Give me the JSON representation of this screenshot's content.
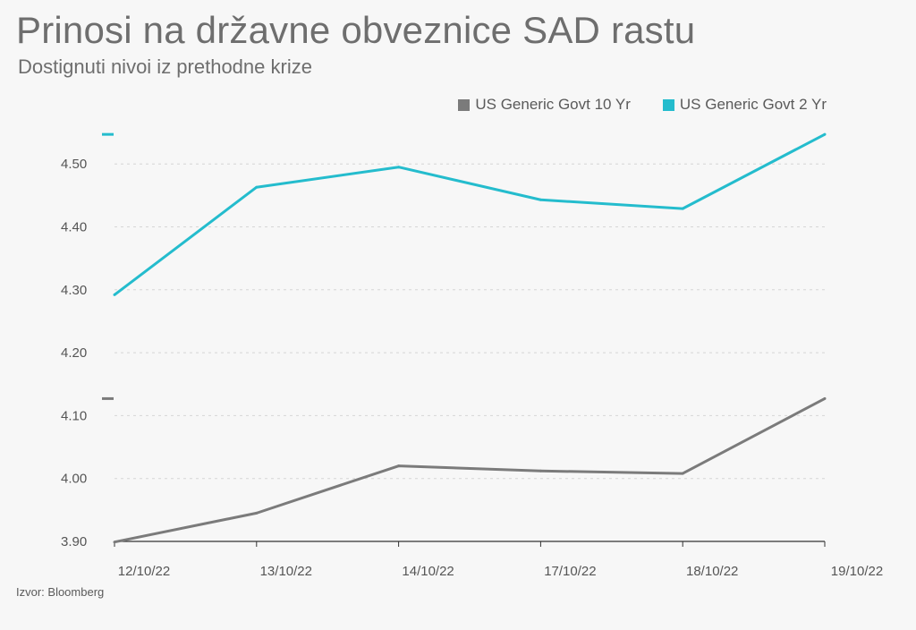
{
  "title": "Prinosi na državne obveznice SAD rastu",
  "subtitle": "Dostignuti nivoi iz prethodne krize",
  "source": "Izvor: Bloomberg",
  "colors": {
    "series_10y": "#7b7b7b",
    "series_2y": "#24bccd",
    "grid": "#d6d6d6",
    "axis": "#333333"
  },
  "chart_data": {
    "type": "line",
    "categories": [
      "12/10/22",
      "13/10/22",
      "14/10/22",
      "17/10/22",
      "18/10/22",
      "19/10/22"
    ],
    "series": [
      {
        "name": "US Generic Govt 10 Yr",
        "values": [
          3.899,
          3.945,
          4.02,
          4.012,
          4.008,
          4.127
        ],
        "color": "#7b7b7b"
      },
      {
        "name": "US Generic Govt 2 Yr",
        "values": [
          4.292,
          4.463,
          4.495,
          4.443,
          4.429,
          4.547
        ],
        "color": "#24bccd"
      }
    ],
    "yticks": [
      "3.90",
      "4.00",
      "4.10",
      "4.20",
      "4.30",
      "4.40",
      "4.50"
    ],
    "ylim": [
      3.9,
      4.57
    ],
    "grid": true,
    "legend_position": "top-right",
    "last_value_markers": true
  }
}
